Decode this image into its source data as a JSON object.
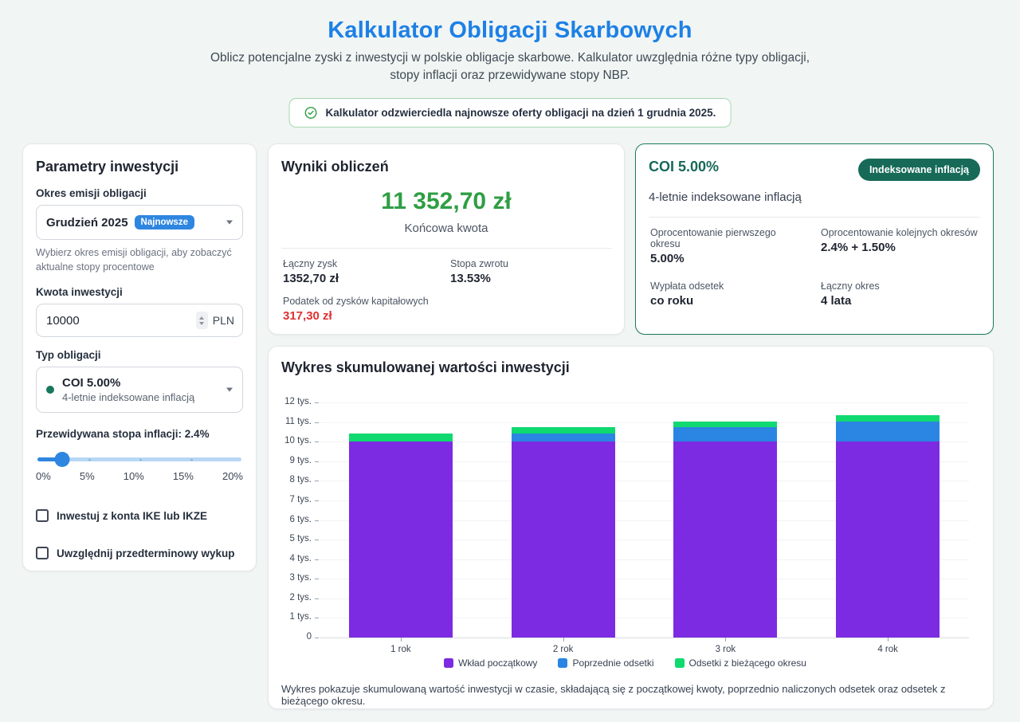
{
  "page": {
    "title": "Kalkulator Obligacji Skarbowych",
    "subtitle": "Oblicz potencjalne zyski z inwestycji w polskie obligacje skarbowe. Kalkulator uwzględnia różne typy obligacji, stopy inflacji oraz przewidywane stopy NBP.",
    "banner": "Kalkulator odzwierciedla najnowsze oferty obligacji na dzień 1 grudnia 2025."
  },
  "colors": {
    "accent_blue": "#1d80e6",
    "result_green": "#2f9e44",
    "tax_red": "#e03131",
    "teal": "#17695a",
    "bar_purple": "#7c2be2",
    "bar_blue": "#2a86e2",
    "bar_green": "#0fd96f"
  },
  "parameters": {
    "heading": "Parametry inwestycji",
    "issue_period": {
      "label": "Okres emisji obligacji",
      "value": "Grudzień 2025",
      "badge": "Najnowsze",
      "helper": "Wybierz okres emisji obligacji, aby zobaczyć aktualne stopy procentowe"
    },
    "amount": {
      "label": "Kwota inwestycji",
      "value": "10000",
      "currency": "PLN"
    },
    "bond_type": {
      "label": "Typ obligacji",
      "value": "COI 5.00%",
      "description": "4-letnie indeksowane inflacją"
    },
    "inflation": {
      "label": "Przewidywana stopa inflacji: 2.4%",
      "value": 2.4,
      "min": 0,
      "max": 20,
      "tick_labels": [
        "0%",
        "5%",
        "10%",
        "15%",
        "20%"
      ]
    },
    "checkboxes": [
      {
        "label": "Inwestuj z konta IKE lub IKZE",
        "checked": false
      },
      {
        "label": "Uwzględnij przedterminowy wykup",
        "checked": false
      }
    ]
  },
  "results": {
    "heading": "Wyniki obliczeń",
    "final_amount": "11 352,70 zł",
    "final_label": "Końcowa kwota",
    "stats": [
      {
        "label": "Łączny zysk",
        "value": "1352,70 zł"
      },
      {
        "label": "Stopa zwrotu",
        "value": "13.53%"
      }
    ],
    "tax": {
      "label": "Podatek od zysków kapitałowych",
      "value": "317,30 zł"
    }
  },
  "bond_card": {
    "title": "COI 5.00%",
    "badge": "Indeksowane inflacją",
    "subtitle": "4-letnie indeksowane inflacją",
    "details": [
      {
        "label": "Oprocentowanie pierwszego okresu",
        "value": "5.00%"
      },
      {
        "label": "Oprocentowanie kolejnych okresów",
        "value": "2.4% + 1.50%"
      },
      {
        "label": "Wypłata odsetek",
        "value": "co roku"
      },
      {
        "label": "Łączny okres",
        "value": "4 lata"
      }
    ]
  },
  "chart": {
    "heading": "Wykres skumulowanej wartości inwestycji",
    "footnote": "Wykres pokazuje skumulowaną wartość inwestycji w czasie, składającą się z początkowej kwoty, poprzednio naliczonych odsetek oraz odsetek z bieżącego okresu."
  },
  "chart_data": {
    "type": "bar",
    "stacked": true,
    "title": "Wykres skumulowanej wartości inwestycji",
    "categories": [
      "1 rok",
      "2 rok",
      "3 rok",
      "4 rok"
    ],
    "series": [
      {
        "name": "Wkład początkowy",
        "color": "#7c2be2",
        "values": [
          10000,
          10000,
          10000,
          10000
        ]
      },
      {
        "name": "Poprzednie odsetki",
        "color": "#2a86e2",
        "values": [
          0,
          405,
          720.9,
          1036.8
        ]
      },
      {
        "name": "Odsetki z bieżącego okresu",
        "color": "#0fd96f",
        "values": [
          405,
          315.9,
          315.9,
          315.9
        ]
      }
    ],
    "totals": [
      10405,
      10720.9,
      11036.8,
      11352.7
    ],
    "ylim": [
      0,
      12000
    ],
    "ytick_step": 1000,
    "ytick_labels": [
      "0",
      "1 tys.",
      "2 tys.",
      "3 tys.",
      "4 tys.",
      "5 tys.",
      "6 tys.",
      "7 tys.",
      "8 tys.",
      "9 tys.",
      "10 tys.",
      "11 tys.",
      "12 tys."
    ],
    "xlabel": "",
    "ylabel": "",
    "grid": true,
    "legend_position": "bottom"
  }
}
